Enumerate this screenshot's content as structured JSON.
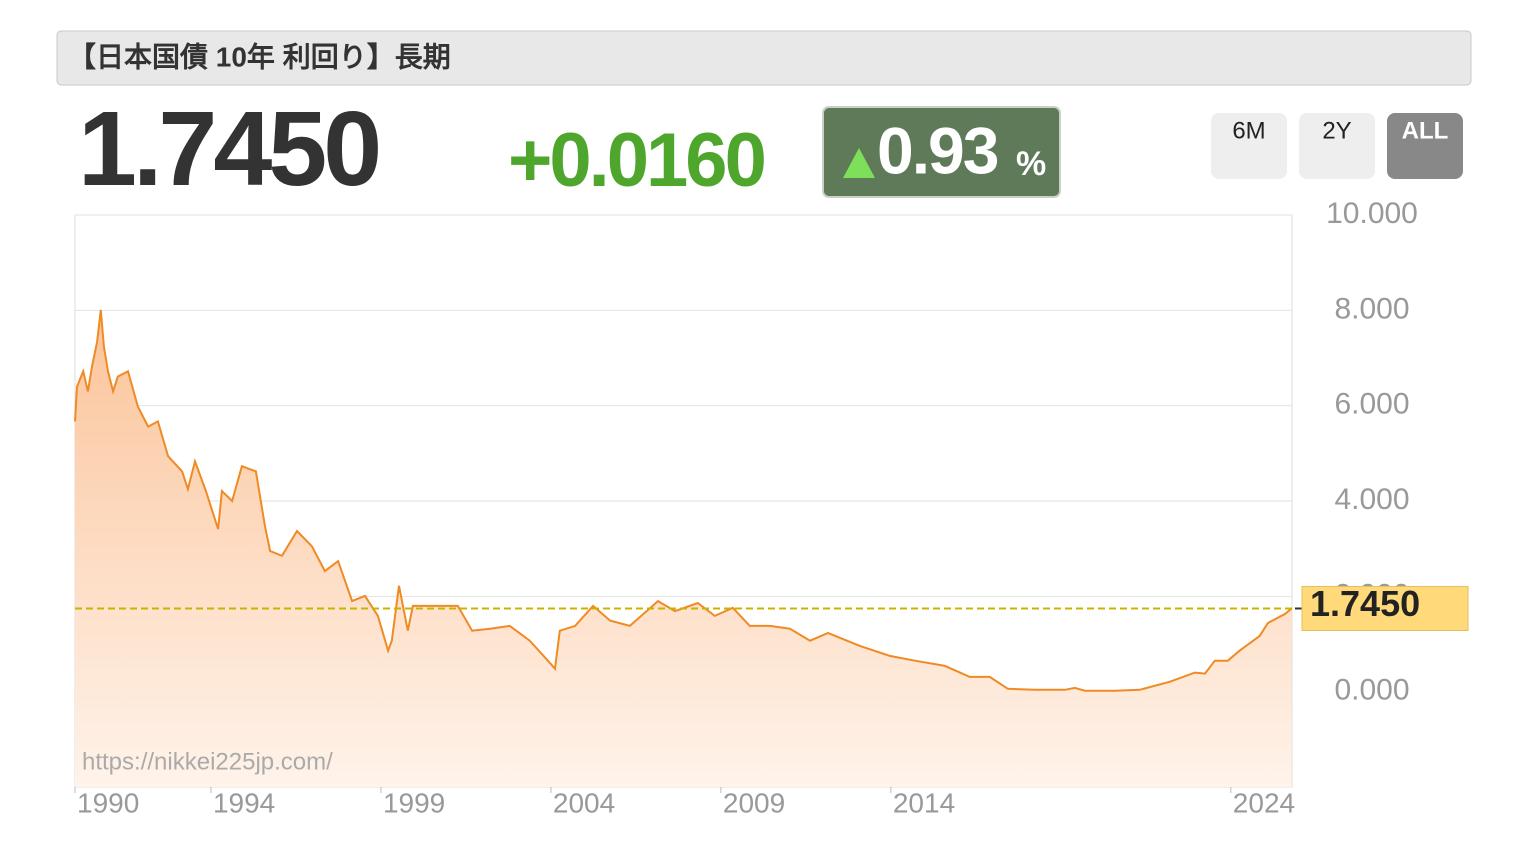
{
  "header": {
    "title": "【日本国債 10年 利回り】長期",
    "price": "1.7450",
    "change": "+0.0160",
    "change_pct": "0.93",
    "pct_unit": "%",
    "ranges": [
      "6M",
      "2Y",
      "ALL"
    ],
    "selected_range": "ALL",
    "watermark": "https://nikkei225jp.com/"
  },
  "chart_data": {
    "type": "line",
    "color": "#f08a24",
    "grid": true,
    "reference_line": 1.745,
    "x": [
      1990.0,
      1990.06,
      1990.24,
      1990.38,
      1990.5,
      1990.65,
      1990.76,
      1990.85,
      1990.97,
      1991.12,
      1991.26,
      1991.56,
      1991.85,
      1992.15,
      1992.44,
      1992.74,
      1993.15,
      1993.32,
      1993.53,
      1993.85,
      1994.21,
      1994.32,
      1994.62,
      1994.91,
      1995.32,
      1995.59,
      1995.74,
      1996.09,
      1996.53,
      1996.97,
      1997.35,
      1997.74,
      1998.15,
      1998.53,
      1998.91,
      1999.21,
      1999.32,
      1999.53,
      1999.79,
      1999.94,
      2000.44,
      2001.26,
      2001.68,
      2002.21,
      2002.79,
      2003.38,
      2003.91,
      2004.12,
      2004.26,
      2004.71,
      2005.24,
      2005.74,
      2006.32,
      2007.15,
      2007.65,
      2008.32,
      2008.82,
      2009.35,
      2009.85,
      2010.44,
      2011.03,
      2011.62,
      2012.15,
      2013.09,
      2013.97,
      2014.71,
      2015.59,
      2016.32,
      2016.91,
      2017.44,
      2018.24,
      2019.12,
      2019.41,
      2019.71,
      2020.59,
      2021.32,
      2022.21,
      2022.94,
      2023.24,
      2023.53,
      2023.91,
      2024.26,
      2024.85,
      2025.09,
      2025.59,
      2025.79
    ],
    "values": [
      5.67,
      6.4,
      6.72,
      6.3,
      6.82,
      7.34,
      8.01,
      7.24,
      6.72,
      6.3,
      6.61,
      6.72,
      5.98,
      5.56,
      5.67,
      4.94,
      4.62,
      4.25,
      4.83,
      4.21,
      3.41,
      4.21,
      4.0,
      4.73,
      4.62,
      3.47,
      2.95,
      2.85,
      3.37,
      3.05,
      2.53,
      2.74,
      1.9,
      2.01,
      1.59,
      0.86,
      1.07,
      2.22,
      1.28,
      1.8,
      1.8,
      1.8,
      1.28,
      1.32,
      1.38,
      1.07,
      0.65,
      0.48,
      1.28,
      1.38,
      1.8,
      1.49,
      1.38,
      1.9,
      1.69,
      1.86,
      1.59,
      1.76,
      1.38,
      1.38,
      1.32,
      1.07,
      1.23,
      0.96,
      0.75,
      0.65,
      0.54,
      0.31,
      0.31,
      0.06,
      0.04,
      0.04,
      0.08,
      0.02,
      0.02,
      0.04,
      0.21,
      0.4,
      0.38,
      0.65,
      0.65,
      0.86,
      1.17,
      1.44,
      1.63,
      1.745
    ],
    "xlim": [
      1990,
      2025.8
    ],
    "xticks": [
      1990,
      1994,
      1999,
      2004,
      2009,
      2014,
      2024
    ],
    "ylim": [
      -2,
      10
    ],
    "yticks": [
      {
        "value": 0,
        "label": "0.000"
      },
      {
        "value": 2,
        "label": "2.000"
      },
      {
        "value": 4,
        "label": "4.000"
      },
      {
        "value": 6,
        "label": "6.000"
      },
      {
        "value": 8,
        "label": "8.000"
      },
      {
        "value": 10,
        "label": "10.000"
      }
    ]
  }
}
